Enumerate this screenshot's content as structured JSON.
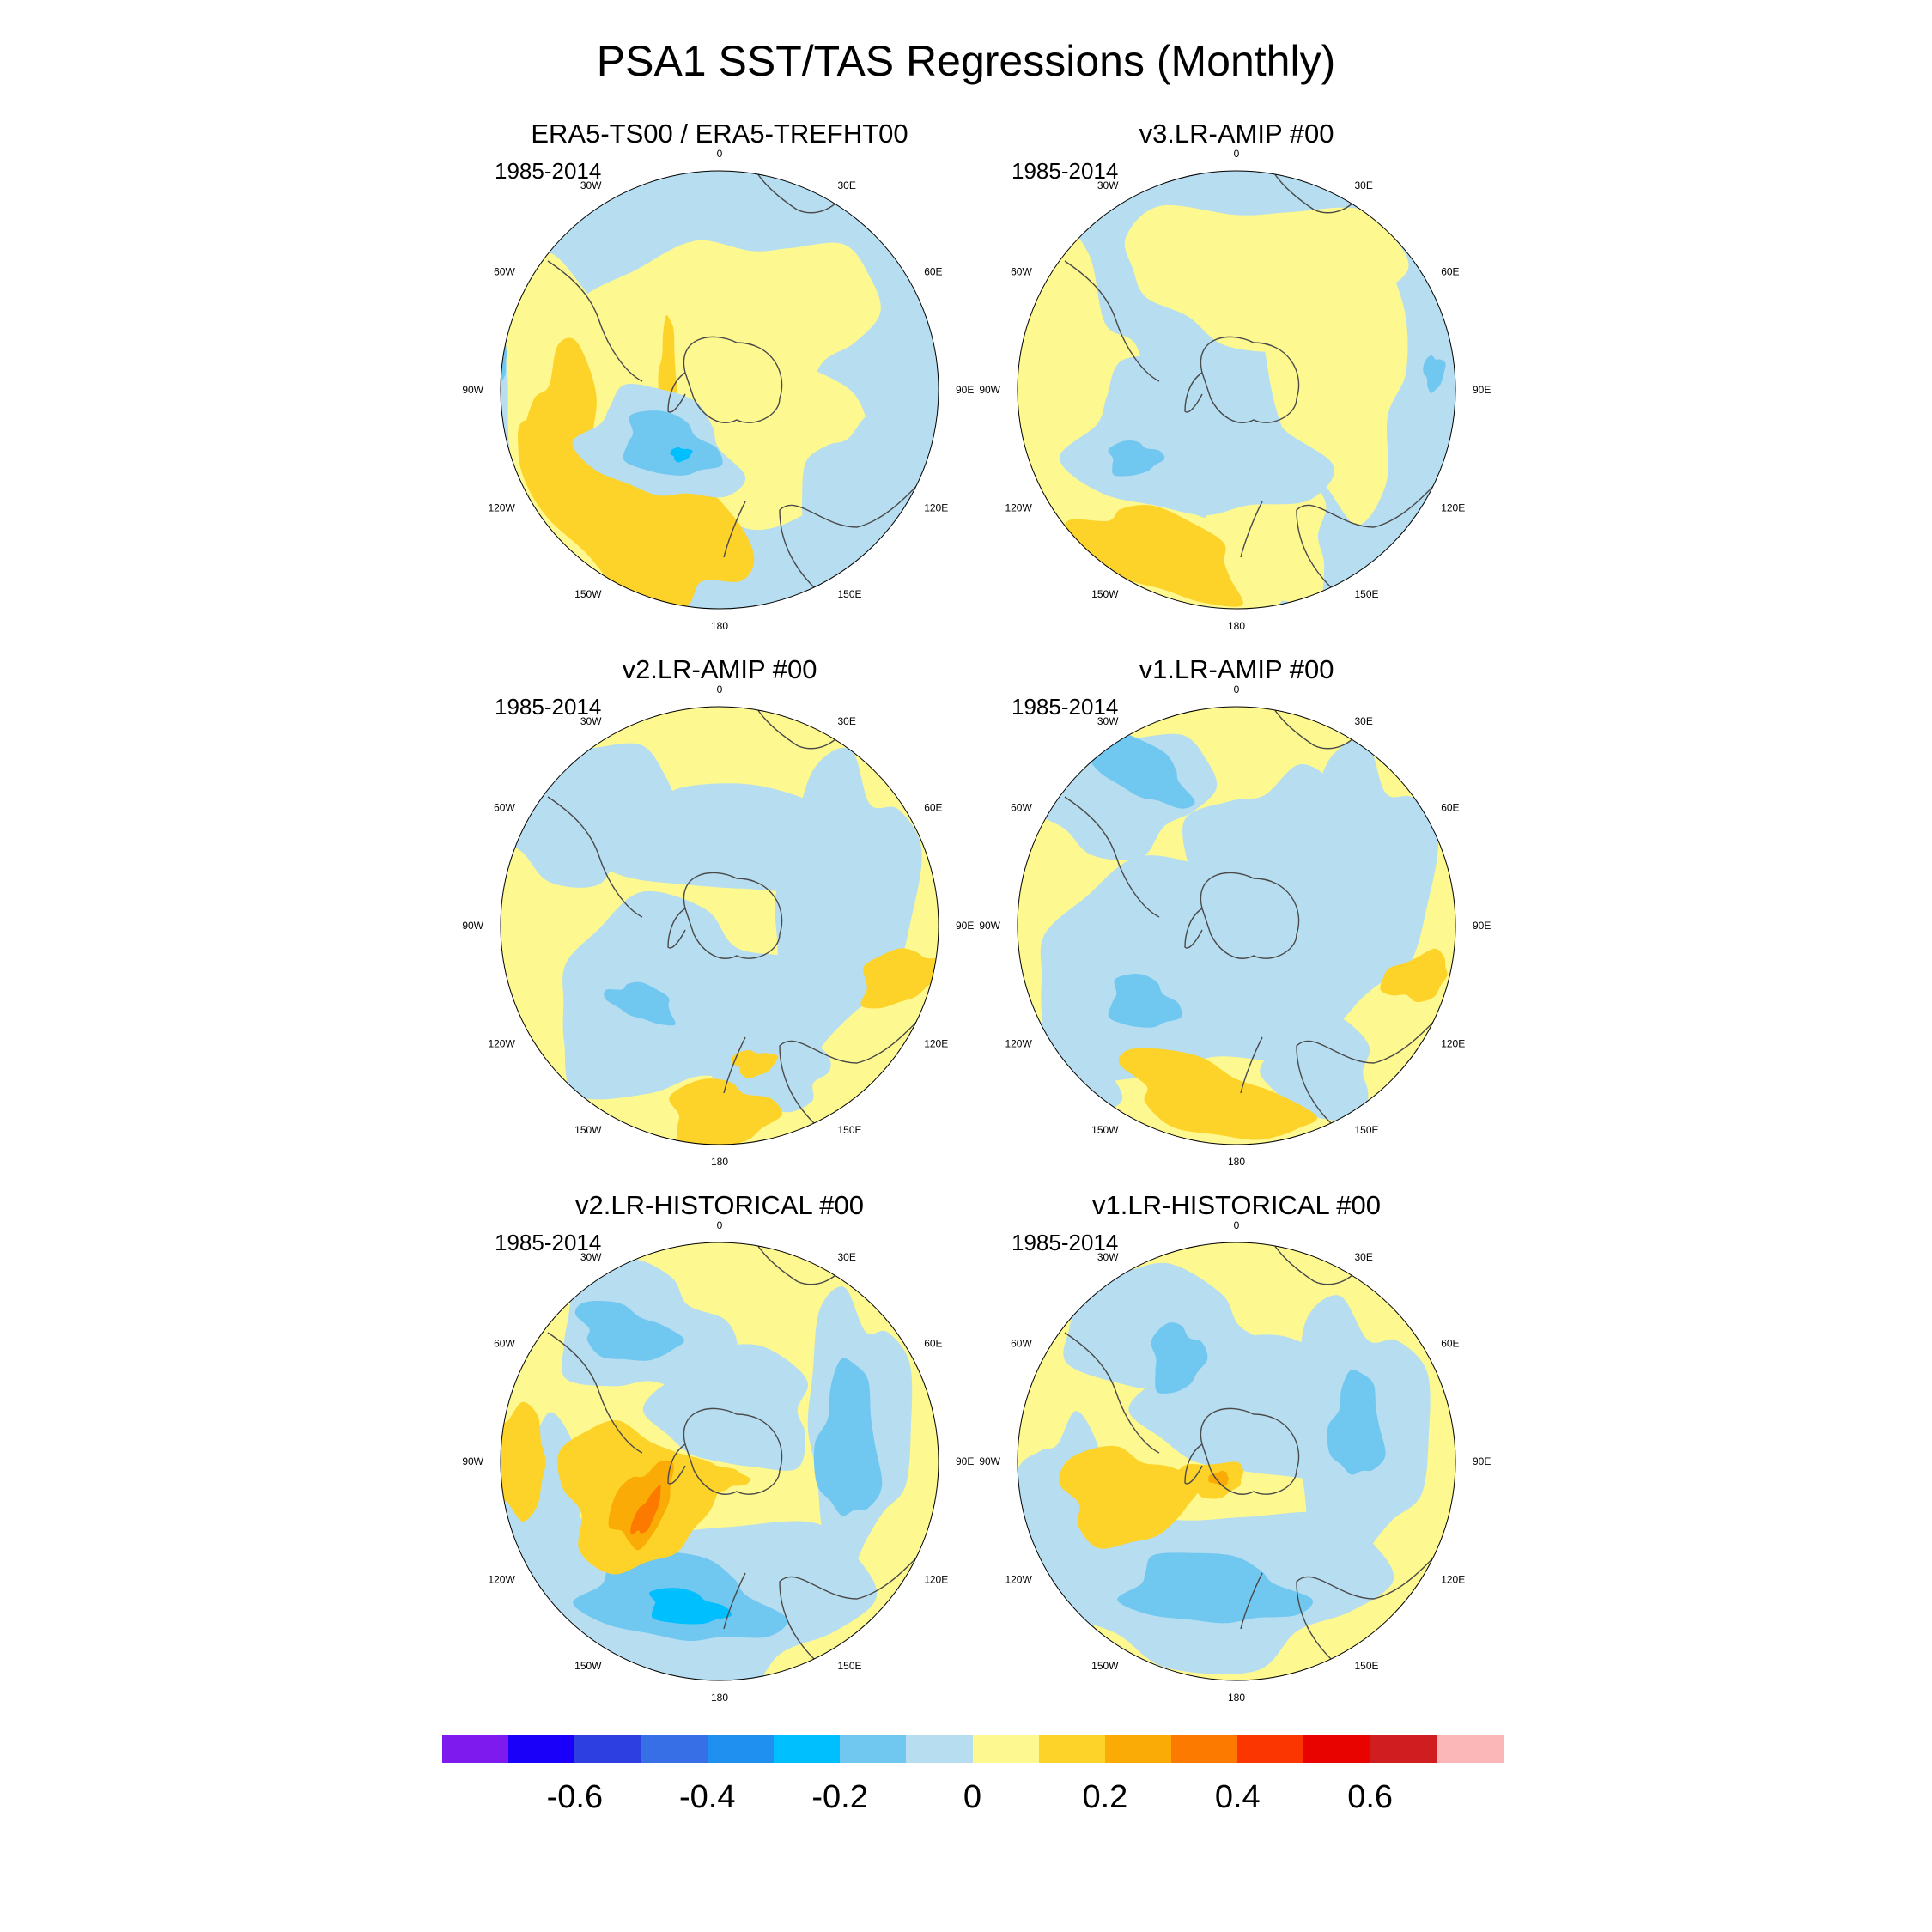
{
  "title": "PSA1 SST/TAS Regressions (Monthly)",
  "panels": [
    {
      "title": "ERA5-TS00 / ERA5-TREFHT00",
      "period": "1985-2014",
      "pattern": "era5"
    },
    {
      "title": "v3.LR-AMIP  #00",
      "period": "1985-2014",
      "pattern": "v3amip"
    },
    {
      "title": "v2.LR-AMIP  #00",
      "period": "1985-2014",
      "pattern": "v2amip"
    },
    {
      "title": "v1.LR-AMIP  #00",
      "period": "1985-2014",
      "pattern": "v1amip"
    },
    {
      "title": "v2.LR-HISTORICAL  #00",
      "period": "1985-2014",
      "pattern": "v2hist"
    },
    {
      "title": "v1.LR-HISTORICAL  #00",
      "period": "1985-2014",
      "pattern": "v1hist"
    }
  ],
  "longitude_labels": [
    "0",
    "30E",
    "60E",
    "90E",
    "120E",
    "150E",
    "180",
    "150W",
    "120W",
    "90W",
    "60W",
    "30W"
  ],
  "colorbar": {
    "colors": [
      "#7f1aef",
      "#1a00f9",
      "#2d3fe0",
      "#3770e6",
      "#1f8ff0",
      "#00bfff",
      "#70c7f0",
      "#b6ddf0",
      "#fdf88f",
      "#fdd32a",
      "#fbab06",
      "#fc7a00",
      "#fb3600",
      "#e80300",
      "#cf1d20",
      "#fbb7b8"
    ],
    "labels": [
      "-0.6",
      "-0.4",
      "-0.2",
      "0",
      "0.2",
      "0.4",
      "0.6"
    ]
  }
}
